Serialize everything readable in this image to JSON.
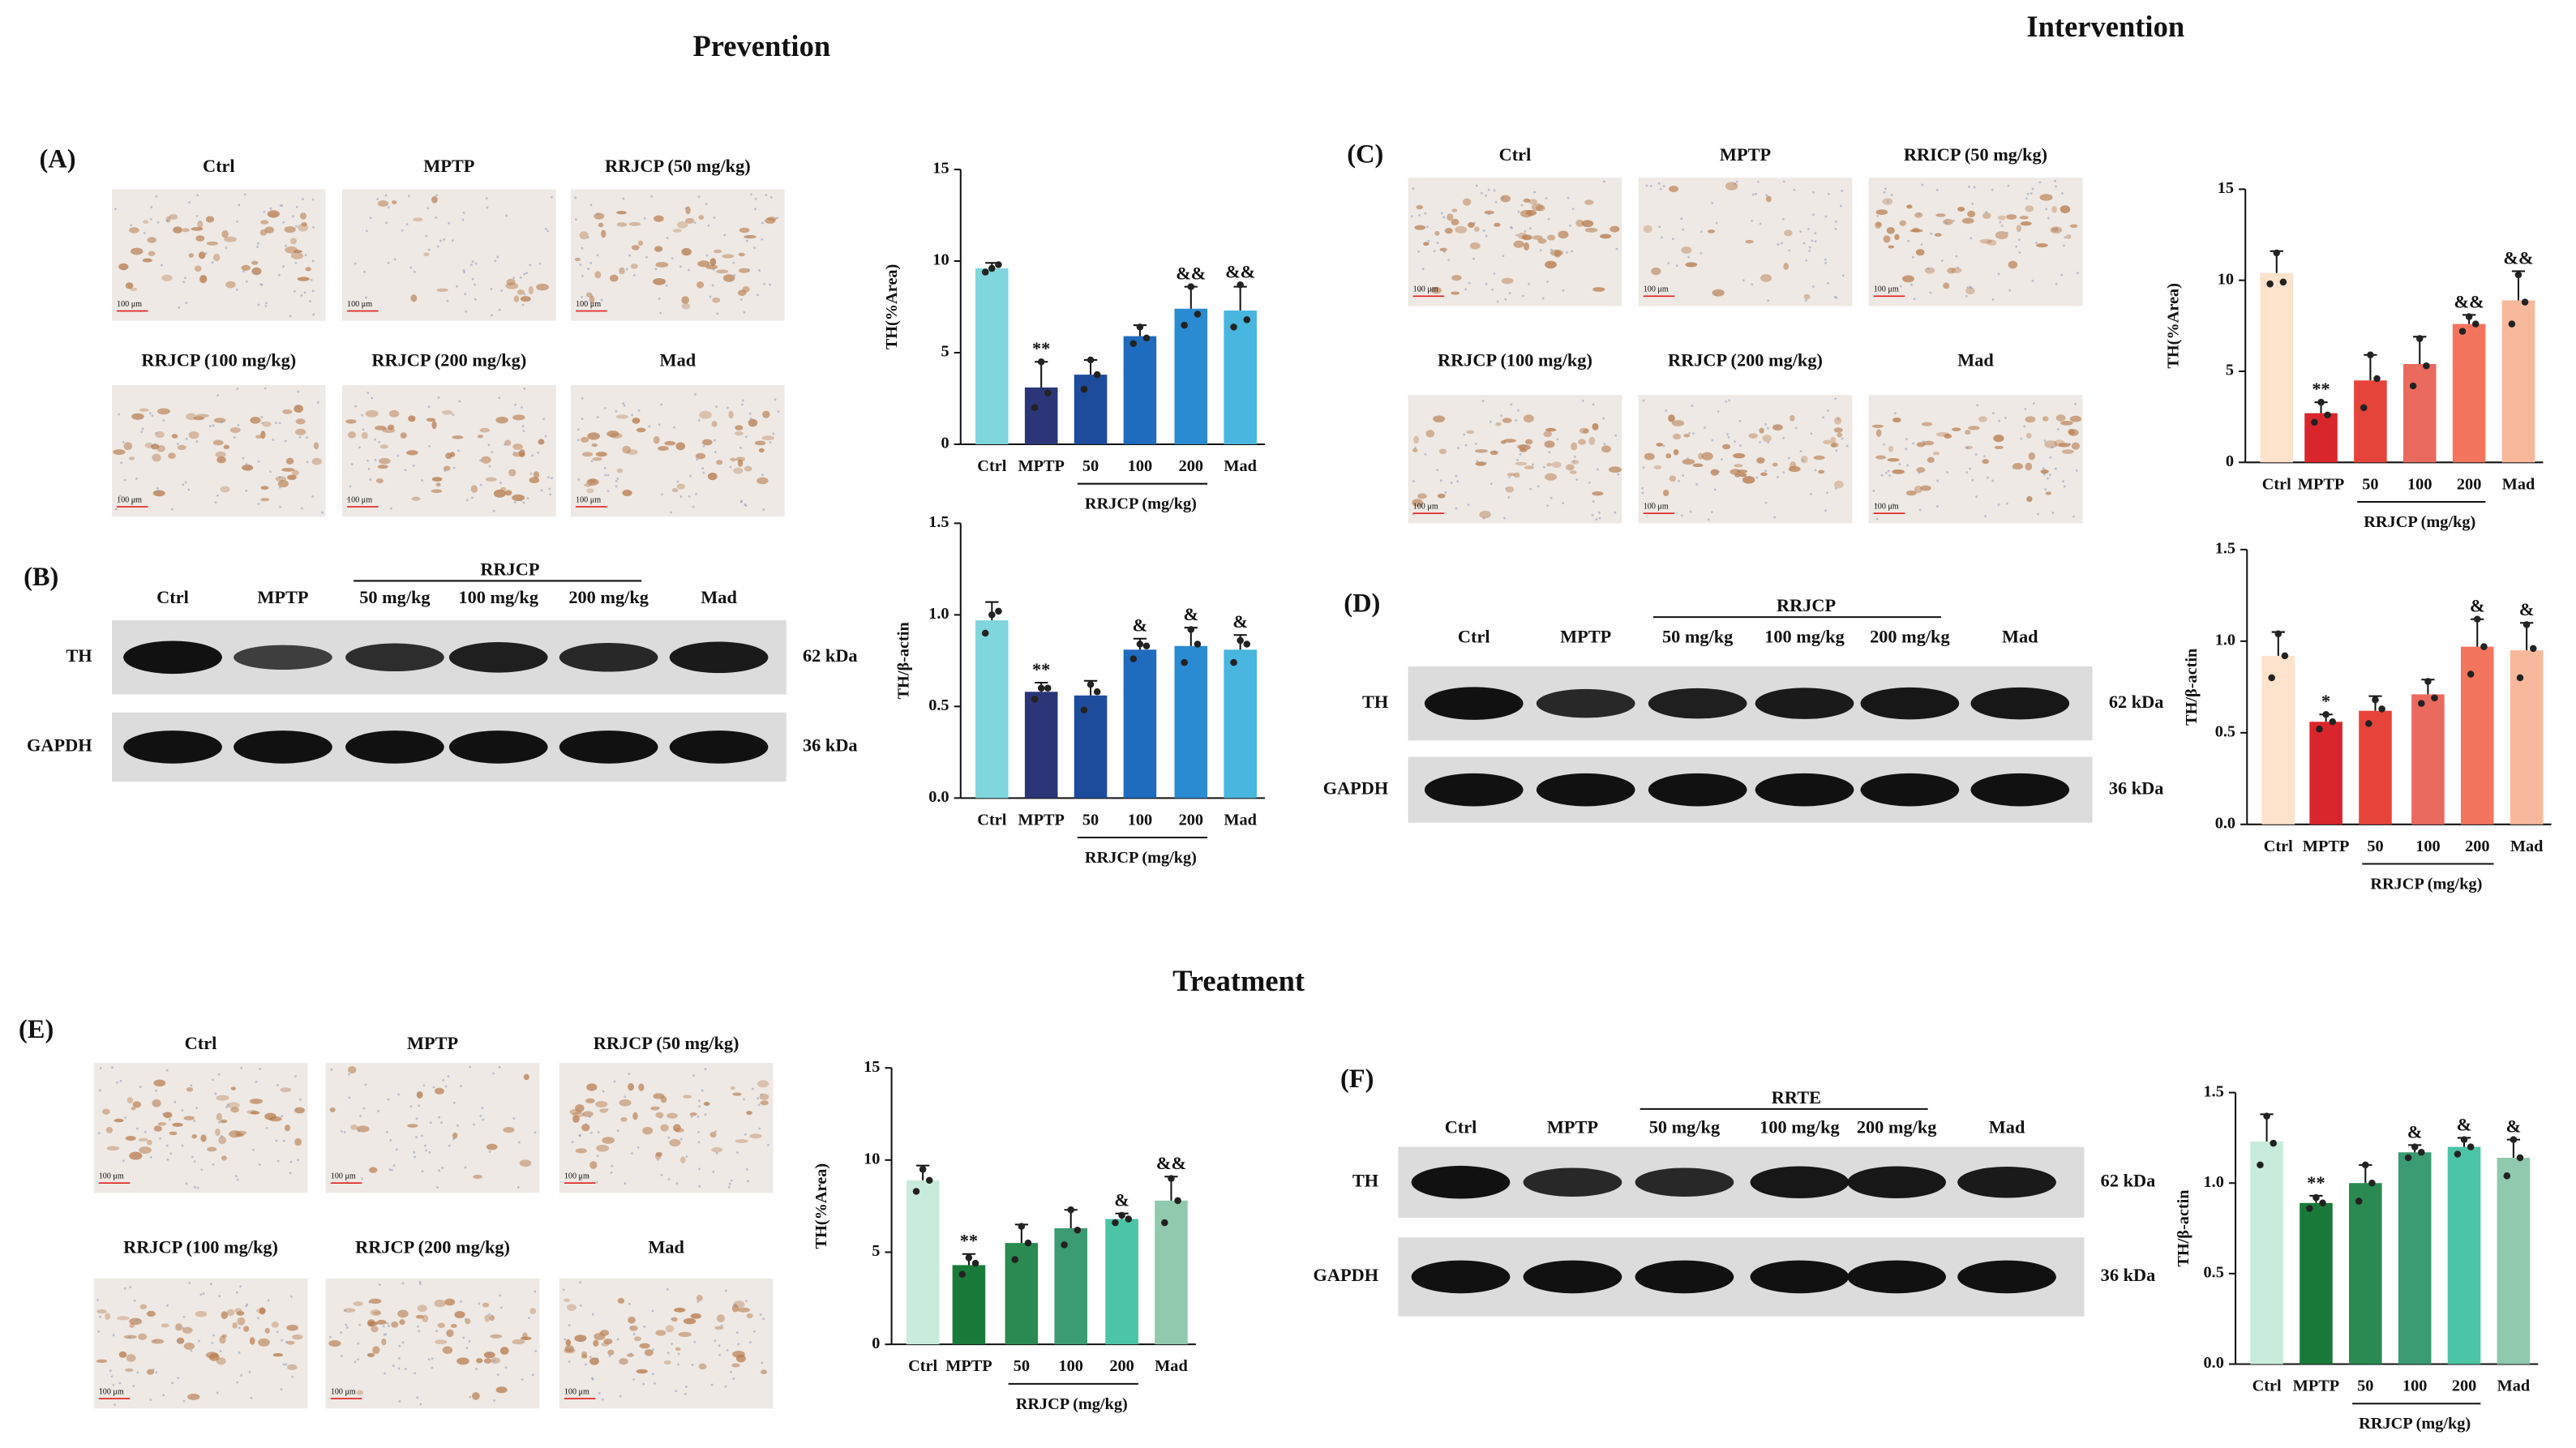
{
  "sections": [
    "Prevention",
    "Intervention",
    "Treatment"
  ],
  "panels": [
    "(A)",
    "(B)",
    "(C)",
    "(D)",
    "(E)",
    "(F)"
  ],
  "scale_bar": "100 μm",
  "histology": [
    {
      "captions": [
        "Ctrl",
        "MPTP",
        "RRJCP (50 mg/kg)",
        "RRJCP (100 mg/kg)",
        "RRJCP (200 mg/kg)",
        "Mad"
      ]
    },
    {
      "captions": [
        "Ctrl",
        "MPTP",
        "RRICP (50 mg/kg)",
        "RRJCP (100 mg/kg)",
        "RRJCP (200 mg/kg)",
        "Mad"
      ]
    },
    {
      "captions": [
        "Ctrl",
        "MPTP",
        "RRJCP (50 mg/kg)",
        "RRJCP (100 mg/kg)",
        "RRJCP (200 mg/kg)",
        "Mad"
      ]
    }
  ],
  "blots": [
    {
      "group": "RRJCP",
      "lanes": [
        "Ctrl",
        "MPTP",
        "50 mg/kg",
        "100 mg/kg",
        "200 mg/kg",
        "Mad"
      ],
      "rows": [
        "TH",
        "GAPDH"
      ],
      "sizes": [
        "62 kDa",
        "36 kDa"
      ]
    },
    {
      "group": "RRJCP",
      "lanes": [
        "Ctrl",
        "MPTP",
        "50 mg/kg",
        "100 mg/kg",
        "200 mg/kg",
        "Mad"
      ],
      "rows": [
        "TH",
        "GAPDH"
      ],
      "sizes": [
        "62 kDa",
        "36 kDa"
      ]
    },
    {
      "group": "RRTE",
      "lanes": [
        "Ctrl",
        "MPTP",
        "50 mg/kg",
        "100 mg/kg",
        "200 mg/kg",
        "Mad"
      ],
      "rows": [
        "TH",
        "GAPDH"
      ],
      "sizes": [
        "62 kDa",
        "36 kDa"
      ]
    }
  ],
  "chart_data": [
    {
      "type": "bar",
      "ylabel": "TH(%Area)",
      "group_label": "RRJCP (mg/kg)",
      "categories": [
        "Ctrl",
        "MPTP",
        "50",
        "100",
        "200",
        "Mad"
      ],
      "values": [
        9.6,
        3.1,
        3.8,
        5.9,
        7.4,
        7.3
      ],
      "errors": [
        0.3,
        1.4,
        0.8,
        0.6,
        1.2,
        1.3
      ],
      "points": [
        [
          9.4,
          9.8,
          9.6
        ],
        [
          2.0,
          2.8,
          4.5
        ],
        [
          3.0,
          3.8,
          4.6
        ],
        [
          5.5,
          5.8,
          6.4
        ],
        [
          6.5,
          7.1,
          8.6
        ],
        [
          6.4,
          6.8,
          8.7
        ]
      ],
      "annotations": [
        null,
        "**",
        null,
        null,
        "&&",
        "&&"
      ],
      "colors": [
        "#7fd6dc",
        "#2b3578",
        "#1d4c9c",
        "#1f6bbd",
        "#2a8bd3",
        "#48b6de"
      ],
      "ylim": [
        0,
        15
      ],
      "yticks": [
        0,
        5,
        10,
        15
      ]
    },
    {
      "type": "bar",
      "ylabel": "TH/β-actin",
      "group_label": "RRJCP (mg/kg)",
      "categories": [
        "Ctrl",
        "MPTP",
        "50",
        "100",
        "200",
        "Mad"
      ],
      "values": [
        0.97,
        0.58,
        0.56,
        0.81,
        0.83,
        0.81
      ],
      "errors": [
        0.1,
        0.05,
        0.08,
        0.06,
        0.1,
        0.08
      ],
      "points": [
        [
          0.9,
          1.02,
          1.0
        ],
        [
          0.54,
          0.6,
          0.6
        ],
        [
          0.48,
          0.58,
          0.62
        ],
        [
          0.76,
          0.83,
          0.84
        ],
        [
          0.74,
          0.84,
          0.92
        ],
        [
          0.74,
          0.84,
          0.86
        ]
      ],
      "annotations": [
        null,
        "**",
        null,
        "&",
        "&",
        "&"
      ],
      "colors": [
        "#7fd6dc",
        "#2b3578",
        "#1d4c9c",
        "#1f6bbd",
        "#2a8bd3",
        "#48b6de"
      ],
      "ylim": [
        0,
        1.5
      ],
      "yticks": [
        {
          "value": 0,
          "label": "0.0"
        },
        0.5,
        {
          "value": 1,
          "label": "1.0"
        },
        1.5
      ]
    },
    {
      "type": "bar",
      "ylabel": "TH(%Area)",
      "group_label": "RRJCP (mg/kg)",
      "categories": [
        "Ctrl",
        "MPTP",
        "50",
        "100",
        "200",
        "Mad"
      ],
      "values": [
        10.4,
        2.7,
        4.5,
        5.4,
        7.6,
        8.9
      ],
      "errors": [
        1.2,
        0.6,
        1.4,
        1.5,
        0.5,
        1.6
      ],
      "points": [
        [
          9.8,
          9.9,
          11.5
        ],
        [
          2.2,
          2.6,
          3.3
        ],
        [
          3.0,
          4.6,
          5.9
        ],
        [
          4.2,
          5.3,
          6.8
        ],
        [
          7.2,
          7.6,
          8.0
        ],
        [
          7.6,
          8.8,
          10.3
        ]
      ],
      "annotations": [
        null,
        "**",
        null,
        null,
        "&&",
        "&&"
      ],
      "colors": [
        "#fde2cc",
        "#d8262c",
        "#e6443a",
        "#ea6a5e",
        "#f3755e",
        "#f8b89b"
      ],
      "ylim": [
        0,
        15
      ],
      "yticks": [
        0,
        5,
        10,
        15
      ]
    },
    {
      "type": "bar",
      "ylabel": "TH/β-actin",
      "group_label": "RRJCP (mg/kg)",
      "categories": [
        "Ctrl",
        "MPTP",
        "50",
        "100",
        "200",
        "Mad"
      ],
      "values": [
        0.92,
        0.56,
        0.62,
        0.71,
        0.97,
        0.95
      ],
      "errors": [
        0.13,
        0.04,
        0.08,
        0.08,
        0.15,
        0.15
      ],
      "points": [
        [
          0.8,
          0.92,
          1.04
        ],
        [
          0.52,
          0.56,
          0.6
        ],
        [
          0.55,
          0.63,
          0.68
        ],
        [
          0.66,
          0.69,
          0.78
        ],
        [
          0.82,
          0.97,
          1.12
        ],
        [
          0.8,
          0.96,
          1.09
        ]
      ],
      "annotations": [
        null,
        "*",
        null,
        null,
        "&",
        "&"
      ],
      "colors": [
        "#fde2cc",
        "#d8262c",
        "#e6443a",
        "#ea6a5e",
        "#f3755e",
        "#f8b89b"
      ],
      "ylim": [
        0,
        1.5
      ],
      "yticks": [
        {
          "value": 0,
          "label": "0.0"
        },
        0.5,
        {
          "value": 1,
          "label": "1.0"
        },
        1.5
      ]
    },
    {
      "type": "bar",
      "ylabel": "TH(%Area)",
      "group_label": "RRJCP (mg/kg)",
      "categories": [
        "Ctrl",
        "MPTP",
        "50",
        "100",
        "200",
        "Mad"
      ],
      "values": [
        8.9,
        4.3,
        5.5,
        6.3,
        6.8,
        7.8
      ],
      "errors": [
        0.8,
        0.6,
        1.0,
        1.0,
        0.3,
        1.3
      ],
      "points": [
        [
          8.3,
          8.9,
          9.5
        ],
        [
          3.8,
          4.4,
          4.7
        ],
        [
          4.6,
          5.5,
          6.4
        ],
        [
          5.4,
          6.2,
          7.3
        ],
        [
          6.6,
          6.8,
          7.0
        ],
        [
          6.6,
          7.8,
          9.0
        ]
      ],
      "annotations": [
        null,
        "**",
        null,
        null,
        "&",
        "&&"
      ],
      "colors": [
        "#c8ecdb",
        "#1a7a3a",
        "#2a8a52",
        "#3b9b72",
        "#4cc5a7",
        "#90c9ae"
      ],
      "ylim": [
        0,
        15
      ],
      "yticks": [
        0,
        5,
        10,
        15
      ]
    },
    {
      "type": "bar",
      "ylabel": "TH/β-actin",
      "group_label": "RRJCP (mg/kg)",
      "categories": [
        "Ctrl",
        "MPTP",
        "50",
        "100",
        "200",
        "Mad"
      ],
      "values": [
        1.23,
        0.89,
        1.0,
        1.17,
        1.2,
        1.14
      ],
      "errors": [
        0.15,
        0.04,
        0.1,
        0.04,
        0.05,
        0.1
      ],
      "points": [
        [
          1.1,
          1.22,
          1.37
        ],
        [
          0.86,
          0.89,
          0.92
        ],
        [
          0.9,
          1.0,
          1.1
        ],
        [
          1.14,
          1.17,
          1.2
        ],
        [
          1.16,
          1.2,
          1.24
        ],
        [
          1.04,
          1.14,
          1.24
        ]
      ],
      "annotations": [
        null,
        "**",
        null,
        "&",
        "&",
        "&"
      ],
      "colors": [
        "#c8ecdb",
        "#1a7a3a",
        "#2a8a52",
        "#3b9b72",
        "#4cc5a7",
        "#90c9ae"
      ],
      "ylim": [
        0,
        1.5
      ],
      "yticks": [
        {
          "value": 0,
          "label": "0.0"
        },
        0.5,
        {
          "value": 1,
          "label": "1.0"
        },
        1.5
      ]
    }
  ]
}
